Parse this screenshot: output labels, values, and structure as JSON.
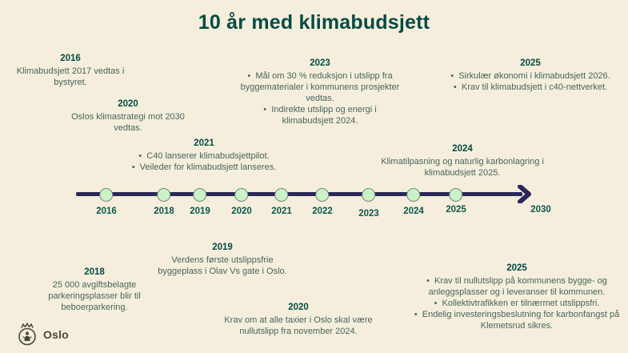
{
  "title": "10 år med klimabudsjett",
  "events": [
    {
      "year": "2016",
      "text": "Klimabudsjett 2017 vedtas i bystyret."
    },
    {
      "year": "2020",
      "text": "Oslos klimastrategi mot 2030 vedtas."
    },
    {
      "year": "2021",
      "bullets": [
        "C40 lanserer klimabudsjettpilot.",
        "Veileder for klimabudsjett lanseres."
      ]
    },
    {
      "year": "2023",
      "bullets": [
        "Mål om 30 % reduksjon i utslipp fra byggematerialer i kommunens prosjekter vedtas.",
        "Indirekte utslipp og energi i klimabudsjett 2024."
      ]
    },
    {
      "year": "2024",
      "text": "Klimatilpasning og naturlig karbonlagring i klimabudsjett 2025."
    },
    {
      "year": "2025",
      "bullets": [
        "Sirkulær økonomi i klimabudsjett 2026.",
        "Krav til klimabudsjett i c40-nettverket."
      ]
    },
    {
      "year": "2019",
      "text": "Verdens første utslippsfrie byggeplass i Olav Vs gate i Oslo."
    },
    {
      "year": "2018",
      "text": "25 000 avgiftsbelagte parkeringsplasser blir til beboerparkering."
    },
    {
      "year": "2020",
      "text": "Krav om at alle taxier i Oslo skal være nullutslipp fra november 2024."
    },
    {
      "year": "2025",
      "bullets": [
        "Krav til nullutslipp på kommunens bygge- og anleggsplasser og i leveranser til kommunen.",
        "Kollektivtrafikken er tilnærmet utslippsfri.",
        "Endelig investeringsbeslutning for karbonfangst på Klemetsrud sikres."
      ]
    }
  ],
  "timeline": {
    "years": [
      "2016",
      "2018",
      "2019",
      "2020",
      "2021",
      "2022",
      "2023",
      "2024",
      "2025"
    ],
    "end_label": "2030"
  },
  "logo": {
    "text": "Oslo"
  },
  "colors": {
    "background": "#f5eedc",
    "heading_green": "#054b44",
    "body_text": "#47655c",
    "timeline_navy": "#2a2859",
    "dot_green": "#c9f3c6"
  }
}
